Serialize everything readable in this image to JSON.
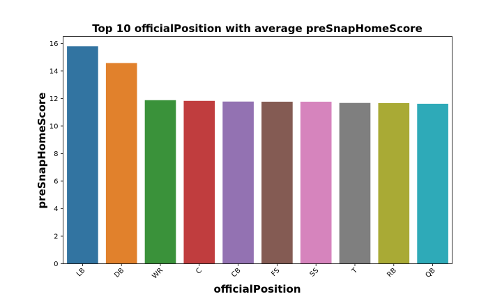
{
  "chart_data": {
    "type": "bar",
    "title": "Top 10 officialPosition with average preSnapHomeScore",
    "xlabel": "officialPosition",
    "ylabel": "preSnapHomeScore",
    "categories": [
      "LB",
      "DB",
      "WR",
      "C",
      "CB",
      "FS",
      "SS",
      "T",
      "RB",
      "QB"
    ],
    "values": [
      15.8,
      14.58,
      11.88,
      11.83,
      11.78,
      11.77,
      11.77,
      11.68,
      11.67,
      11.62
    ],
    "colors": [
      "#3274a1",
      "#e1812c",
      "#3a923a",
      "#c03d3e",
      "#9372b2",
      "#845b53",
      "#d684bd",
      "#7f7f7f",
      "#a9aa35",
      "#2eaab8"
    ],
    "ylim": [
      0,
      16.5
    ],
    "yticks": [
      0,
      2,
      4,
      6,
      8,
      10,
      12,
      14,
      16
    ],
    "grid": false,
    "legend": "none"
  }
}
